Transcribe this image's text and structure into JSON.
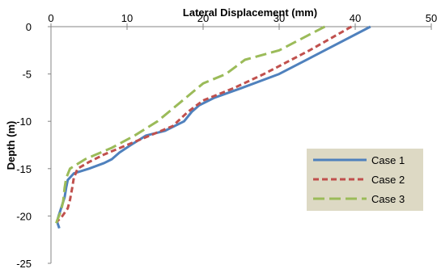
{
  "chart_data": {
    "type": "line",
    "title": "Lateral Displacement (mm)",
    "xlabel": "",
    "ylabel": "Depth (m)",
    "xlim": [
      0,
      50
    ],
    "ylim": [
      -25,
      0
    ],
    "x_ticks": [
      0,
      10,
      20,
      30,
      40,
      50
    ],
    "y_ticks": [
      0,
      -5,
      -10,
      -15,
      -20,
      -25
    ],
    "x_axis_position": "top",
    "grid": false,
    "legend_position": "right",
    "series": [
      {
        "name": "Case 1",
        "color": "#4F81BD",
        "style": "solid",
        "points": [
          [
            42,
            0
          ],
          [
            36,
            -2.5
          ],
          [
            30,
            -5
          ],
          [
            25,
            -6.5
          ],
          [
            21.5,
            -7.5
          ],
          [
            19.5,
            -8.3
          ],
          [
            18.5,
            -9
          ],
          [
            17.5,
            -10
          ],
          [
            15,
            -11
          ],
          [
            12.5,
            -11.5
          ],
          [
            10.5,
            -12.5
          ],
          [
            9,
            -13.3
          ],
          [
            8,
            -14
          ],
          [
            7,
            -14.4
          ],
          [
            5,
            -15
          ],
          [
            3,
            -15.5
          ],
          [
            2.2,
            -16.2
          ],
          [
            2,
            -17
          ],
          [
            1.8,
            -18
          ],
          [
            1.4,
            -19
          ],
          [
            1,
            -20
          ],
          [
            0.8,
            -20.6
          ],
          [
            1.1,
            -21.3
          ]
        ]
      },
      {
        "name": "Case 2",
        "color": "#C0504D",
        "style": "dash",
        "points": [
          [
            39.5,
            0
          ],
          [
            34,
            -2.5
          ],
          [
            28,
            -5
          ],
          [
            24,
            -6.5
          ],
          [
            20,
            -7.8
          ],
          [
            18,
            -9
          ],
          [
            16,
            -10.5
          ],
          [
            13,
            -11.5
          ],
          [
            10,
            -12.5
          ],
          [
            7,
            -13.5
          ],
          [
            5,
            -14.3
          ],
          [
            3.5,
            -15
          ],
          [
            3,
            -16
          ],
          [
            2.8,
            -17
          ],
          [
            2.5,
            -18.3
          ],
          [
            2.2,
            -19.2
          ],
          [
            1.5,
            -20
          ],
          [
            0.8,
            -20.6
          ]
        ]
      },
      {
        "name": "Case 3",
        "color": "#9BBB59",
        "style": "longdash",
        "points": [
          [
            36,
            0
          ],
          [
            30,
            -2.5
          ],
          [
            25.5,
            -3.5
          ],
          [
            23,
            -5
          ],
          [
            20,
            -6
          ],
          [
            17,
            -8
          ],
          [
            14,
            -10
          ],
          [
            11,
            -11.5
          ],
          [
            8,
            -12.8
          ],
          [
            4.5,
            -14
          ],
          [
            2.5,
            -15
          ],
          [
            2,
            -16
          ],
          [
            1.8,
            -17
          ],
          [
            1.6,
            -18.5
          ],
          [
            1.3,
            -19.5
          ],
          [
            0.8,
            -20.5
          ],
          [
            0.6,
            -21
          ]
        ]
      }
    ]
  }
}
